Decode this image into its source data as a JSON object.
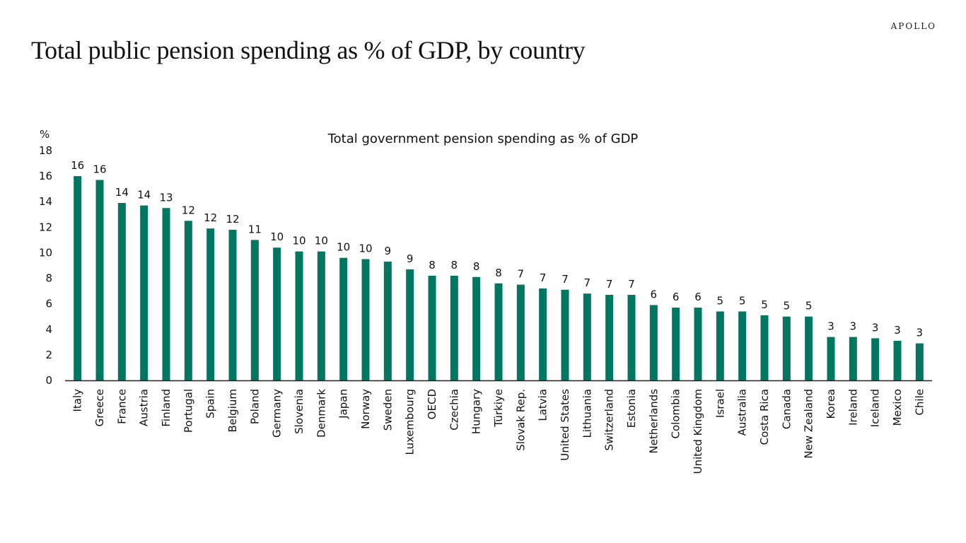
{
  "brand": {
    "logo_text": "APOLLO"
  },
  "page": {
    "title": "Total public pension spending as % of  GDP, by country"
  },
  "colors": {
    "bar": "#017660",
    "axis": "#222222",
    "text": "#111111"
  },
  "chart_data": {
    "type": "bar",
    "title": "Total government pension spending as % of GDP",
    "ylabel": "%",
    "xlabel": "",
    "ylim": [
      0,
      18
    ],
    "yticks": [
      0,
      2,
      4,
      6,
      8,
      10,
      12,
      14,
      16,
      18
    ],
    "grid": false,
    "legend": "none",
    "categories": [
      "Italy",
      "Greece",
      "France",
      "Austria",
      "Finland",
      "Portugal",
      "Spain",
      "Belgium",
      "Poland",
      "Germany",
      "Slovenia",
      "Denmark",
      "Japan",
      "Norway",
      "Sweden",
      "Luxembourg",
      "OECD",
      "Czechia",
      "Hungary",
      "Türkiye",
      "Slovak Rep.",
      "Latvia",
      "United States",
      "Lithuania",
      "Switzerland",
      "Estonia",
      "Netherlands",
      "Colombia",
      "United Kingdom",
      "Israel",
      "Australia",
      "Costa Rica",
      "Canada",
      "New Zealand",
      "Korea",
      "Ireland",
      "Iceland",
      "Mexico",
      "Chile"
    ],
    "values": [
      16.0,
      15.7,
      13.9,
      13.7,
      13.5,
      12.5,
      11.9,
      11.8,
      11.0,
      10.4,
      10.1,
      10.1,
      9.6,
      9.5,
      9.3,
      8.7,
      8.2,
      8.2,
      8.1,
      7.6,
      7.5,
      7.2,
      7.1,
      6.8,
      6.7,
      6.7,
      5.9,
      5.7,
      5.7,
      5.4,
      5.4,
      5.1,
      5.0,
      5.0,
      3.4,
      3.4,
      3.3,
      3.1,
      2.9
    ],
    "data_labels": [
      "16",
      "16",
      "14",
      "14",
      "13",
      "12",
      "12",
      "12",
      "11",
      "10",
      "10",
      "10",
      "10",
      "10",
      "9",
      "9",
      "8",
      "8",
      "8",
      "8",
      "7",
      "7",
      "7",
      "7",
      "7",
      "7",
      "6",
      "6",
      "6",
      "5",
      "5",
      "5",
      "5",
      "5",
      "3",
      "3",
      "3",
      "3",
      "3"
    ]
  }
}
